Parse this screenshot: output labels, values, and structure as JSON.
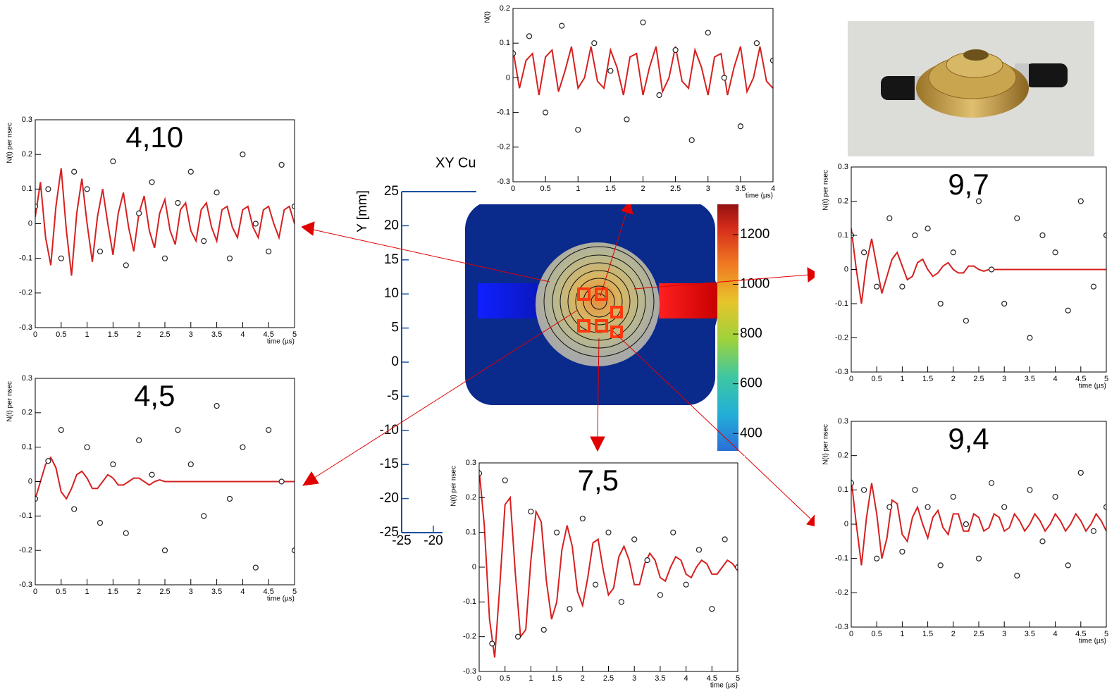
{
  "chart_data": [
    {
      "type": "line",
      "title": "4,10",
      "xlabel": "time (µs)",
      "ylabel": "N(t) per nsec",
      "xlim": [
        0,
        5
      ],
      "ylim": [
        -0.3,
        0.3
      ],
      "xticks": [
        0,
        0.5,
        1,
        1.5,
        2,
        2.5,
        3,
        3.5,
        4,
        4.5,
        5
      ],
      "yticks": [
        -0.3,
        -0.2,
        -0.1,
        0,
        0.1,
        0.2,
        0.3
      ],
      "series": [
        {
          "color": "#d62020",
          "x": [
            0,
            0.1,
            0.2,
            0.3,
            0.4,
            0.5,
            0.6,
            0.7,
            0.8,
            0.9,
            1,
            1.1,
            1.2,
            1.3,
            1.4,
            1.5,
            1.6,
            1.7,
            1.8,
            1.9,
            2,
            2.1,
            2.2,
            2.3,
            2.4,
            2.5,
            2.6,
            2.7,
            2.8,
            2.9,
            3,
            3.1,
            3.2,
            3.3,
            3.4,
            3.5,
            3.6,
            3.7,
            3.8,
            3.9,
            4,
            4.1,
            4.2,
            4.3,
            4.4,
            4.5,
            4.6,
            4.7,
            4.8,
            4.9,
            5
          ],
          "values": [
            0.02,
            0.12,
            -0.04,
            -0.12,
            0.05,
            0.16,
            -0.02,
            -0.15,
            0.03,
            0.13,
            0.0,
            -0.11,
            0.02,
            0.1,
            0.0,
            -0.09,
            0.03,
            0.09,
            -0.01,
            -0.08,
            0.03,
            0.08,
            -0.02,
            -0.07,
            0.03,
            0.07,
            -0.02,
            -0.06,
            0.04,
            0.06,
            -0.02,
            -0.05,
            0.04,
            0.06,
            -0.01,
            -0.05,
            0.04,
            0.05,
            -0.01,
            -0.04,
            0.04,
            0.05,
            -0.01,
            -0.04,
            0.04,
            0.05,
            0.0,
            -0.04,
            0.04,
            0.05,
            0.0
          ]
        },
        {
          "color": "#222222",
          "x": [
            0,
            0.25,
            0.5,
            0.75,
            1,
            1.25,
            1.5,
            1.75,
            2,
            2.25,
            2.5,
            2.75,
            3,
            3.25,
            3.5,
            3.75,
            4,
            4.25,
            4.5,
            4.75,
            5
          ],
          "values": [
            0.05,
            0.1,
            -0.1,
            0.15,
            0.1,
            -0.08,
            0.18,
            -0.12,
            0.03,
            0.12,
            -0.1,
            0.06,
            0.15,
            -0.05,
            0.09,
            -0.1,
            0.2,
            0.0,
            -0.08,
            0.17,
            0.05
          ]
        }
      ]
    },
    {
      "type": "line",
      "title": "4,5",
      "xlabel": "time (µs)",
      "ylabel": "N(t) per nsec",
      "xlim": [
        0,
        5
      ],
      "ylim": [
        -0.3,
        0.3
      ],
      "xticks": [
        0,
        0.5,
        1,
        1.5,
        2,
        2.5,
        3,
        3.5,
        4,
        4.5,
        5
      ],
      "yticks": [
        -0.3,
        -0.2,
        -0.1,
        0,
        0.1,
        0.2,
        0.3
      ],
      "series": [
        {
          "color": "#d62020",
          "x": [
            0,
            0.1,
            0.2,
            0.3,
            0.4,
            0.5,
            0.6,
            0.7,
            0.8,
            0.9,
            1,
            1.1,
            1.2,
            1.3,
            1.4,
            1.5,
            1.6,
            1.7,
            1.8,
            1.9,
            2,
            2.1,
            2.2,
            2.3,
            2.4,
            2.5,
            2.6,
            2.7,
            2.8,
            2.9,
            3,
            3.1,
            3.2,
            3.3,
            3.4,
            3.5,
            3.6,
            3.7,
            3.8,
            3.9,
            4,
            4.1,
            4.2,
            4.3,
            4.4,
            4.5,
            4.6,
            4.7,
            4.8,
            4.9,
            5
          ],
          "values": [
            -0.05,
            0.0,
            0.05,
            0.07,
            0.04,
            -0.03,
            -0.05,
            -0.02,
            0.02,
            0.03,
            0.01,
            -0.02,
            -0.02,
            0.0,
            0.02,
            0.01,
            -0.01,
            -0.01,
            0.0,
            0.01,
            0.01,
            0.0,
            -0.01,
            0,
            0.005,
            0,
            0,
            0,
            0,
            0,
            0,
            0,
            0,
            0,
            0,
            0,
            0,
            0,
            0,
            0,
            0,
            0,
            0,
            0,
            0,
            0,
            0,
            0,
            0,
            0,
            0
          ]
        },
        {
          "color": "#222222",
          "x": [
            0,
            0.25,
            0.5,
            0.75,
            1,
            1.25,
            1.5,
            1.75,
            2,
            2.25,
            2.5,
            2.75,
            3,
            3.25,
            3.5,
            3.75,
            4,
            4.25,
            4.5,
            4.75,
            5
          ],
          "values": [
            -0.05,
            0.06,
            0.15,
            -0.08,
            0.1,
            -0.12,
            0.05,
            -0.15,
            0.12,
            0.02,
            -0.2,
            0.15,
            0.05,
            -0.1,
            0.22,
            -0.05,
            0.1,
            -0.25,
            0.15,
            0.0,
            -0.2
          ]
        }
      ]
    },
    {
      "type": "line",
      "xlabel": "time (µs)",
      "ylabel": "N(t)",
      "xlim": [
        0,
        4
      ],
      "ylim": [
        -0.3,
        0.2
      ],
      "xticks": [
        0,
        0.5,
        1,
        1.5,
        2,
        2.5,
        3,
        3.5,
        4
      ],
      "yticks": [
        -0.3,
        -0.2,
        -0.1,
        0,
        0.1,
        0.2
      ],
      "series": [
        {
          "color": "#d62020",
          "x": [
            0,
            0.1,
            0.2,
            0.3,
            0.4,
            0.5,
            0.6,
            0.7,
            0.8,
            0.9,
            1,
            1.1,
            1.2,
            1.3,
            1.4,
            1.5,
            1.6,
            1.7,
            1.8,
            1.9,
            2,
            2.1,
            2.2,
            2.3,
            2.4,
            2.5,
            2.6,
            2.7,
            2.8,
            2.9,
            3,
            3.1,
            3.2,
            3.3,
            3.4,
            3.5,
            3.6,
            3.7,
            3.8,
            3.9,
            4
          ],
          "values": [
            0.08,
            -0.03,
            0.05,
            0.07,
            -0.05,
            0.06,
            0.08,
            -0.04,
            0.02,
            0.09,
            -0.03,
            0.0,
            0.09,
            -0.01,
            -0.03,
            0.08,
            0.03,
            -0.05,
            0.06,
            0.07,
            -0.05,
            0.03,
            0.09,
            -0.04,
            0.0,
            0.09,
            -0.01,
            -0.03,
            0.08,
            0.03,
            -0.05,
            0.06,
            0.07,
            -0.05,
            0.03,
            0.09,
            -0.04,
            0.0,
            0.09,
            -0.01,
            -0.03
          ]
        },
        {
          "color": "#222222",
          "x": [
            0,
            0.25,
            0.5,
            0.75,
            1,
            1.25,
            1.5,
            1.75,
            2,
            2.25,
            2.5,
            2.75,
            3,
            3.25,
            3.5,
            3.75,
            4
          ],
          "values": [
            0.07,
            0.12,
            -0.1,
            0.15,
            -0.15,
            0.1,
            0.02,
            -0.12,
            0.16,
            -0.05,
            0.08,
            -0.18,
            0.13,
            0.0,
            -0.14,
            0.1,
            0.05
          ]
        }
      ]
    },
    {
      "type": "line",
      "title": "7,5",
      "xlabel": "time (µs)",
      "ylabel": "N(t) per nsec",
      "xlim": [
        0,
        5
      ],
      "ylim": [
        -0.3,
        0.3
      ],
      "xticks": [
        0,
        0.5,
        1,
        1.5,
        2,
        2.5,
        3,
        3.5,
        4,
        4.5,
        5
      ],
      "yticks": [
        -0.3,
        -0.2,
        -0.1,
        0,
        0.1,
        0.2,
        0.3
      ],
      "series": [
        {
          "color": "#d62020",
          "x": [
            0,
            0.1,
            0.2,
            0.3,
            0.4,
            0.5,
            0.6,
            0.7,
            0.8,
            0.9,
            1,
            1.1,
            1.2,
            1.3,
            1.4,
            1.5,
            1.6,
            1.7,
            1.8,
            1.9,
            2,
            2.1,
            2.2,
            2.3,
            2.4,
            2.5,
            2.6,
            2.7,
            2.8,
            2.9,
            3,
            3.1,
            3.2,
            3.3,
            3.4,
            3.5,
            3.6,
            3.7,
            3.8,
            3.9,
            4,
            4.1,
            4.2,
            4.3,
            4.4,
            4.5,
            4.6,
            4.7,
            4.8,
            4.9,
            5
          ],
          "values": [
            0.28,
            0.12,
            -0.15,
            -0.26,
            -0.05,
            0.18,
            0.2,
            -0.02,
            -0.2,
            -0.18,
            0.02,
            0.16,
            0.13,
            -0.04,
            -0.15,
            -0.1,
            0.05,
            0.12,
            0.06,
            -0.07,
            -0.11,
            -0.03,
            0.07,
            0.08,
            -0.01,
            -0.08,
            -0.06,
            0.03,
            0.06,
            0.02,
            -0.05,
            -0.05,
            0.01,
            0.04,
            0.02,
            -0.03,
            -0.04,
            0.0,
            0.03,
            0.02,
            -0.02,
            -0.03,
            0.0,
            0.02,
            0.01,
            -0.02,
            -0.02,
            0.0,
            0.02,
            0.01,
            -0.01
          ]
        },
        {
          "color": "#222222",
          "x": [
            0,
            0.25,
            0.5,
            0.75,
            1,
            1.25,
            1.5,
            1.75,
            2,
            2.25,
            2.5,
            2.75,
            3,
            3.25,
            3.5,
            3.75,
            4,
            4.25,
            4.5,
            4.75,
            5
          ],
          "values": [
            0.27,
            -0.22,
            0.25,
            -0.2,
            0.16,
            -0.18,
            0.1,
            -0.12,
            0.14,
            -0.05,
            0.1,
            -0.1,
            0.08,
            0.02,
            -0.08,
            0.1,
            -0.05,
            0.05,
            -0.12,
            0.08,
            0.0
          ]
        }
      ]
    },
    {
      "type": "line",
      "title": "9,7",
      "xlabel": "time (µs)",
      "ylabel": "N(t) per nsec",
      "xlim": [
        0,
        5
      ],
      "ylim": [
        -0.3,
        0.3
      ],
      "xticks": [
        0,
        0.5,
        1,
        1.5,
        2,
        2.5,
        3,
        3.5,
        4,
        4.5,
        5
      ],
      "yticks": [
        -0.3,
        -0.2,
        -0.1,
        0,
        0.1,
        0.2,
        0.3
      ],
      "series": [
        {
          "color": "#d62020",
          "x": [
            0,
            0.1,
            0.2,
            0.3,
            0.4,
            0.5,
            0.6,
            0.7,
            0.8,
            0.9,
            1,
            1.1,
            1.2,
            1.3,
            1.4,
            1.5,
            1.6,
            1.7,
            1.8,
            1.9,
            2,
            2.1,
            2.2,
            2.3,
            2.4,
            2.5,
            2.6,
            2.7,
            2.8,
            2.9,
            3,
            3.1,
            3.2,
            3.3,
            3.4,
            3.5,
            3.6,
            3.7,
            3.8,
            3.9,
            4,
            4.1,
            4.2,
            4.3,
            4.4,
            4.5,
            4.6,
            4.7,
            4.8,
            4.9,
            5
          ],
          "values": [
            0.12,
            0.0,
            -0.1,
            0.02,
            0.09,
            0.01,
            -0.07,
            -0.02,
            0.03,
            0.05,
            0.01,
            -0.03,
            -0.02,
            0.02,
            0.03,
            0.0,
            -0.02,
            -0.01,
            0.01,
            0.02,
            0.0,
            -0.01,
            -0.01,
            0.01,
            0.01,
            0.0,
            -0.005,
            0,
            0,
            0,
            0,
            0,
            0,
            0,
            0,
            0,
            0,
            0,
            0,
            0,
            0,
            0,
            0,
            0,
            0,
            0,
            0,
            0,
            0,
            0,
            0
          ]
        },
        {
          "color": "#222222",
          "x": [
            0,
            0.25,
            0.5,
            0.75,
            1,
            1.25,
            1.5,
            1.75,
            2,
            2.25,
            2.5,
            2.75,
            3,
            3.25,
            3.5,
            3.75,
            4,
            4.25,
            4.5,
            4.75,
            5
          ],
          "values": [
            0.1,
            0.05,
            -0.05,
            0.15,
            -0.05,
            0.1,
            0.12,
            -0.1,
            0.05,
            -0.15,
            0.2,
            0.0,
            -0.1,
            0.15,
            -0.2,
            0.1,
            0.05,
            -0.12,
            0.2,
            -0.05,
            0.1
          ]
        }
      ]
    },
    {
      "type": "line",
      "title": "9,4",
      "xlabel": "time (µs)",
      "ylabel": "N(t) per nsec",
      "xlim": [
        0,
        5
      ],
      "ylim": [
        -0.3,
        0.3
      ],
      "xticks": [
        0,
        0.5,
        1,
        1.5,
        2,
        2.5,
        3,
        3.5,
        4,
        4.5,
        5
      ],
      "yticks": [
        -0.3,
        -0.2,
        -0.1,
        0,
        0.1,
        0.2,
        0.3
      ],
      "series": [
        {
          "color": "#d62020",
          "x": [
            0,
            0.1,
            0.2,
            0.3,
            0.4,
            0.5,
            0.6,
            0.7,
            0.8,
            0.9,
            1,
            1.1,
            1.2,
            1.3,
            1.4,
            1.5,
            1.6,
            1.7,
            1.8,
            1.9,
            2,
            2.1,
            2.2,
            2.3,
            2.4,
            2.5,
            2.6,
            2.7,
            2.8,
            2.9,
            3,
            3.1,
            3.2,
            3.3,
            3.4,
            3.5,
            3.6,
            3.7,
            3.8,
            3.9,
            4,
            4.1,
            4.2,
            4.3,
            4.4,
            4.5,
            4.6,
            4.7,
            4.8,
            4.9,
            5
          ],
          "values": [
            0.13,
            0.0,
            -0.12,
            0.02,
            0.12,
            0.03,
            -0.1,
            -0.04,
            0.07,
            0.06,
            -0.03,
            -0.05,
            0.02,
            0.05,
            0.0,
            -0.04,
            0.02,
            0.04,
            -0.01,
            -0.03,
            0.03,
            0.03,
            -0.02,
            -0.02,
            0.03,
            0.02,
            -0.02,
            -0.01,
            0.03,
            0.02,
            -0.02,
            -0.01,
            0.03,
            0.01,
            -0.02,
            0.0,
            0.03,
            0.01,
            -0.02,
            0.0,
            0.03,
            0.01,
            -0.02,
            0.0,
            0.03,
            0.01,
            -0.02,
            0.0,
            0.03,
            0.01,
            -0.02
          ]
        },
        {
          "color": "#222222",
          "x": [
            0,
            0.25,
            0.5,
            0.75,
            1,
            1.25,
            1.5,
            1.75,
            2,
            2.25,
            2.5,
            2.75,
            3,
            3.25,
            3.5,
            3.75,
            4,
            4.25,
            4.5,
            4.75,
            5
          ],
          "values": [
            0.12,
            0.1,
            -0.1,
            0.05,
            -0.08,
            0.1,
            0.05,
            -0.12,
            0.08,
            0.0,
            -0.1,
            0.12,
            0.05,
            -0.15,
            0.1,
            -0.05,
            0.08,
            -0.12,
            0.15,
            -0.02,
            0.05
          ]
        }
      ]
    },
    {
      "type": "heatmap",
      "title": "XY Cut",
      "ylabel": "Y [mm]",
      "xlim": [
        -25,
        25
      ],
      "ylim": [
        -25,
        25
      ],
      "xticks": [
        -25,
        -20
      ],
      "yticks": [
        25,
        20,
        15,
        10,
        5,
        0,
        -5,
        -10,
        -15,
        -20,
        -25
      ],
      "zlim": [
        330,
        1330
      ],
      "zticks": [
        400,
        600,
        800,
        1000,
        1200
      ]
    }
  ]
}
